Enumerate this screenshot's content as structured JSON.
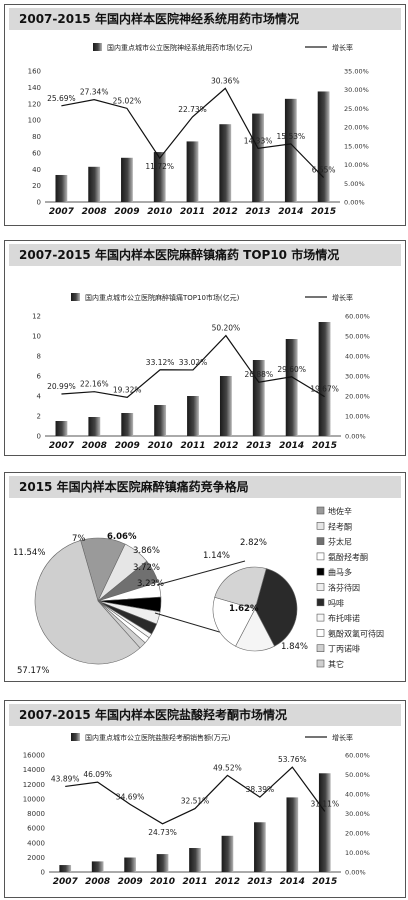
{
  "charts": [
    {
      "title": "2007-2015 年国内样本医院神经系统用药市场情况",
      "chart_data": {
        "type": "bar",
        "categories": [
          "2007",
          "2008",
          "2009",
          "2010",
          "2011",
          "2012",
          "2013",
          "2014",
          "2015"
        ],
        "series": [
          {
            "name": "国内重点城市公立医院神经系统用药市场(亿元)",
            "type": "bar",
            "values": [
              33,
              43,
              54,
              61,
              74,
              95,
              108,
              126,
              135
            ]
          },
          {
            "name": "增长率",
            "type": "line",
            "axis": "right",
            "values": [
              25.69,
              27.34,
              25.02,
              11.72,
              22.73,
              30.36,
              14.33,
              15.53,
              6.55
            ],
            "labels": [
              "25.69%",
              "27.34%",
              "25.02%",
              "11.72%",
              "22.73%",
              "30.36%",
              "14.33%",
              "15.53%",
              "6.55%"
            ]
          }
        ],
        "y_ticks": [
          "0",
          "20",
          "40",
          "60",
          "80",
          "100",
          "120",
          "140",
          "160"
        ],
        "y2_ticks": [
          "0.00%",
          "5.00%",
          "10.00%",
          "15.00%",
          "20.00%",
          "25.00%",
          "30.00%",
          "35.00%"
        ],
        "ylim": [
          0,
          160
        ],
        "y2lim": [
          0,
          35
        ]
      }
    },
    {
      "title": "2007-2015 年国内样本医院麻醉镇痛药 TOP10 市场情况",
      "chart_data": {
        "type": "bar",
        "categories": [
          "2007",
          "2008",
          "2009",
          "2010",
          "2011",
          "2012",
          "2013",
          "2014",
          "2015"
        ],
        "series": [
          {
            "name": "国内重点城市公立医院麻醉镇痛TOP10市场(亿元)",
            "type": "bar",
            "values": [
              1.5,
              1.9,
              2.3,
              3.1,
              4.0,
              6.0,
              7.6,
              9.7,
              11.4
            ]
          },
          {
            "name": "增长率",
            "type": "line",
            "axis": "right",
            "values": [
              20.99,
              22.16,
              19.32,
              33.12,
              33.02,
              50.2,
              26.88,
              29.6,
              19.67
            ],
            "labels": [
              "20.99%",
              "22.16%",
              "19.32%",
              "33.12%",
              "33.02%",
              "50.20%",
              "26.88%",
              "29.60%",
              "19.67%"
            ]
          }
        ],
        "y_ticks": [
          "0",
          "2",
          "4",
          "6",
          "8",
          "10",
          "12"
        ],
        "y2_ticks": [
          "0.00%",
          "10.00%",
          "20.00%",
          "30.00%",
          "40.00%",
          "50.00%",
          "60.00%"
        ],
        "ylim": [
          0,
          12
        ],
        "y2lim": [
          0,
          60
        ]
      }
    },
    {
      "title": "2015 年国内样本医院麻醉镇痛药竞争格局",
      "chart_data": {
        "type": "pie",
        "slices": [
          {
            "name": "地佐辛",
            "value": 11.54,
            "label": "11.54%"
          },
          {
            "name": "羟考酮",
            "value": 7.0,
            "label": "7%"
          },
          {
            "name": "芬太尼",
            "value": 6.06,
            "label": "6.06%"
          },
          {
            "name": "氨酚羟考酮",
            "value": 3.86,
            "label": "3.86%"
          },
          {
            "name": "曲马多",
            "value": 3.72,
            "label": "3.72%"
          },
          {
            "name": "洛芬待因",
            "value": 3.23,
            "label": "3.23%"
          },
          {
            "name": "吗啡",
            "value": 2.82,
            "label": "2.82%"
          },
          {
            "name": "布托啡诺",
            "value": 1.14,
            "label": "1.14%"
          },
          {
            "name": "氨酚双氢可待因",
            "value": 1.62,
            "label": "1.62%"
          },
          {
            "name": "丁丙诺啡",
            "value": 1.84,
            "label": "1.84%"
          },
          {
            "name": "其它",
            "value": 57.17,
            "label": "57.17%"
          }
        ]
      }
    },
    {
      "title": "2007-2015 年国内样本医院盐酸羟考酮市场情况",
      "chart_data": {
        "type": "bar",
        "categories": [
          "2007",
          "2008",
          "2009",
          "2010",
          "2011",
          "2012",
          "2013",
          "2014",
          "2015"
        ],
        "series": [
          {
            "name": "国内重点城市公立医院盐酸羟考酮销售额(万元)",
            "type": "bar",
            "values": [
              950,
              1450,
              1980,
              2450,
              3280,
              4950,
              6800,
              10200,
              13500
            ]
          },
          {
            "name": "增长率",
            "type": "line",
            "axis": "right",
            "values": [
              43.89,
              46.09,
              34.69,
              24.73,
              32.51,
              49.52,
              38.39,
              53.76,
              31.11
            ],
            "labels": [
              "43.89%",
              "46.09%",
              "34.69%",
              "24.73%",
              "32.51%",
              "49.52%",
              "38.39%",
              "53.76%",
              "31.11%"
            ]
          }
        ],
        "y_ticks": [
          "0",
          "2000",
          "4000",
          "6000",
          "8000",
          "10000",
          "12000",
          "14000",
          "16000"
        ],
        "y2_ticks": [
          "0.00%",
          "10.00%",
          "20.00%",
          "30.00%",
          "40.00%",
          "50.00%",
          "60.00%"
        ],
        "ylim": [
          0,
          16000
        ],
        "y2lim": [
          0,
          60
        ]
      }
    }
  ]
}
